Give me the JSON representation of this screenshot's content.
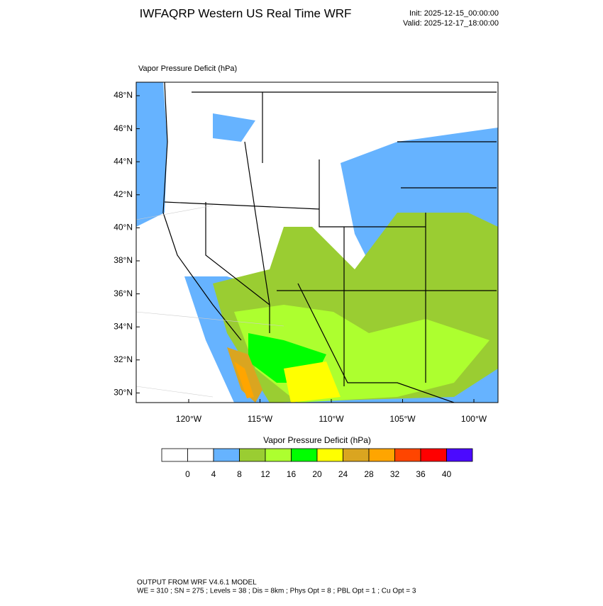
{
  "header": {
    "title": "IWFAQRP Western US Real Time WRF",
    "init": "Init: 2025-12-15_00:00:00",
    "valid": "Valid: 2025-12-17_18:00:00"
  },
  "map": {
    "label": "Vapor Pressure Deficit   (hPa)",
    "lat_labels": [
      "48°N",
      "46°N",
      "44°N",
      "42°N",
      "40°N",
      "38°N",
      "36°N",
      "34°N",
      "32°N",
      "30°N"
    ],
    "lon_labels": [
      "120°W",
      "115°W",
      "110°W",
      "105°W",
      "100°W"
    ]
  },
  "colorbar": {
    "title": "Vapor Pressure Deficit  (hPa)",
    "levels": [
      0,
      4,
      8,
      12,
      16,
      20,
      24,
      28,
      32,
      36,
      40
    ],
    "colors": [
      "#ffffff",
      "#ffffff",
      "#66b3ff",
      "#9acd32",
      "#adff2f",
      "#00ff00",
      "#ffff00",
      "#daa520",
      "#ffa500",
      "#ff4500",
      "#ff0000",
      "#4b0aff"
    ]
  },
  "footer": [
    "OUTPUT FROM WRF V4.6.1 MODEL",
    "WE = 310 ; SN = 275 ; Levels = 38 ; Dis = 8km ; Phys Opt = 8 ; PBL Opt = 1 ; Cu Opt = 3"
  ]
}
